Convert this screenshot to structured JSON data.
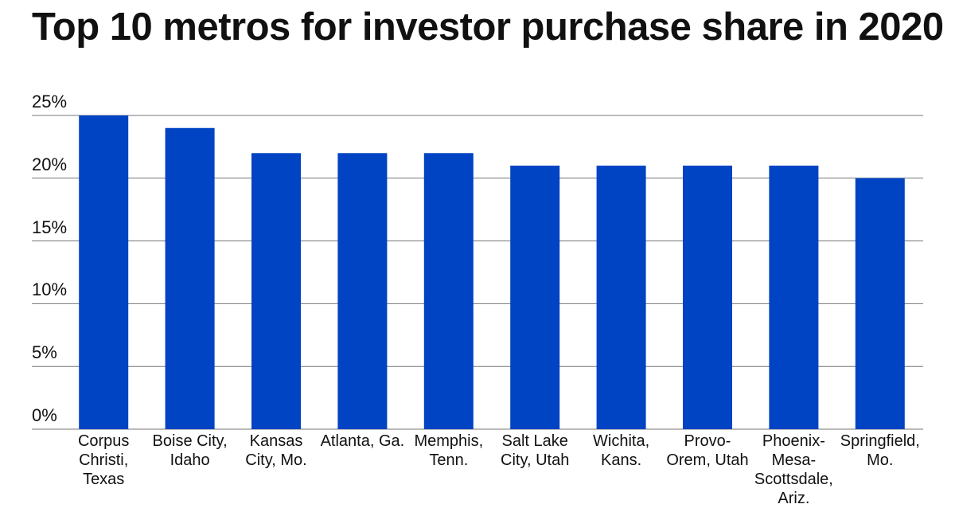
{
  "chart_data": {
    "type": "bar",
    "title": "Top 10 metros for investor purchase share in 2020",
    "categories": [
      "Corpus Christi, Texas",
      "Boise City, Idaho",
      "Kansas City, Mo.",
      "Atlanta, Ga.",
      "Memphis, Tenn.",
      "Salt Lake City, Utah",
      "Wichita, Kans.",
      "Provo-Orem, Utah",
      "Phoenix-Mesa-Scottsdale, Ariz.",
      "Springfield, Mo."
    ],
    "values": [
      25,
      24,
      22,
      22,
      22,
      21,
      21,
      21,
      21,
      20
    ],
    "color": "#0043c3",
    "ylim": [
      0,
      25
    ],
    "yticks": [
      {
        "value": 0,
        "label": "0%"
      },
      {
        "value": 5,
        "label": "5%"
      },
      {
        "value": 10,
        "label": "10%"
      },
      {
        "value": 15,
        "label": "15%"
      },
      {
        "value": 20,
        "label": "20%"
      },
      {
        "value": 25,
        "label": "25%"
      }
    ],
    "grid": true
  }
}
